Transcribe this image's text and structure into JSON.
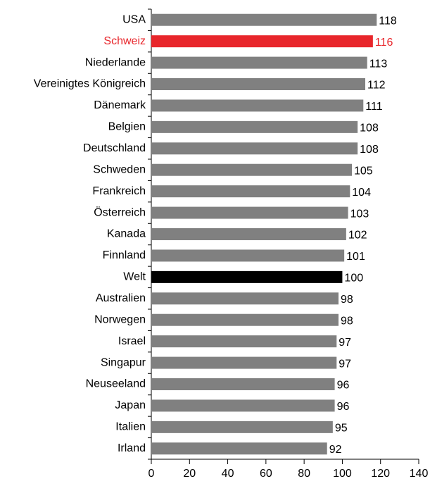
{
  "chart_data": {
    "type": "hbar",
    "categories": [
      "USA",
      "Schweiz",
      "Niederlande",
      "Vereinigtes Königreich",
      "Dänemark",
      "Belgien",
      "Deutschland",
      "Schweden",
      "Frankreich",
      "Österreich",
      "Kanada",
      "Finnland",
      "Welt",
      "Australien",
      "Norwegen",
      "Israel",
      "Singapur",
      "Neuseeland",
      "Japan",
      "Italien",
      "Irland"
    ],
    "values": [
      118,
      116,
      113,
      112,
      111,
      108,
      108,
      105,
      104,
      103,
      102,
      101,
      100,
      98,
      98,
      97,
      97,
      96,
      96,
      95,
      92
    ],
    "colors": [
      "#808080",
      "#e8262b",
      "#808080",
      "#808080",
      "#808080",
      "#808080",
      "#808080",
      "#808080",
      "#808080",
      "#808080",
      "#808080",
      "#808080",
      "#000000",
      "#808080",
      "#808080",
      "#808080",
      "#808080",
      "#808080",
      "#808080",
      "#808080",
      "#808080"
    ],
    "label_colors": [
      "#000000",
      "#e8262b",
      "#000000",
      "#000000",
      "#000000",
      "#000000",
      "#000000",
      "#000000",
      "#000000",
      "#000000",
      "#000000",
      "#000000",
      "#000000",
      "#000000",
      "#000000",
      "#000000",
      "#000000",
      "#000000",
      "#000000",
      "#000000",
      "#000000"
    ],
    "xlim": [
      0,
      140
    ],
    "xticks": [
      0,
      20,
      40,
      60,
      80,
      100,
      120,
      140
    ]
  }
}
